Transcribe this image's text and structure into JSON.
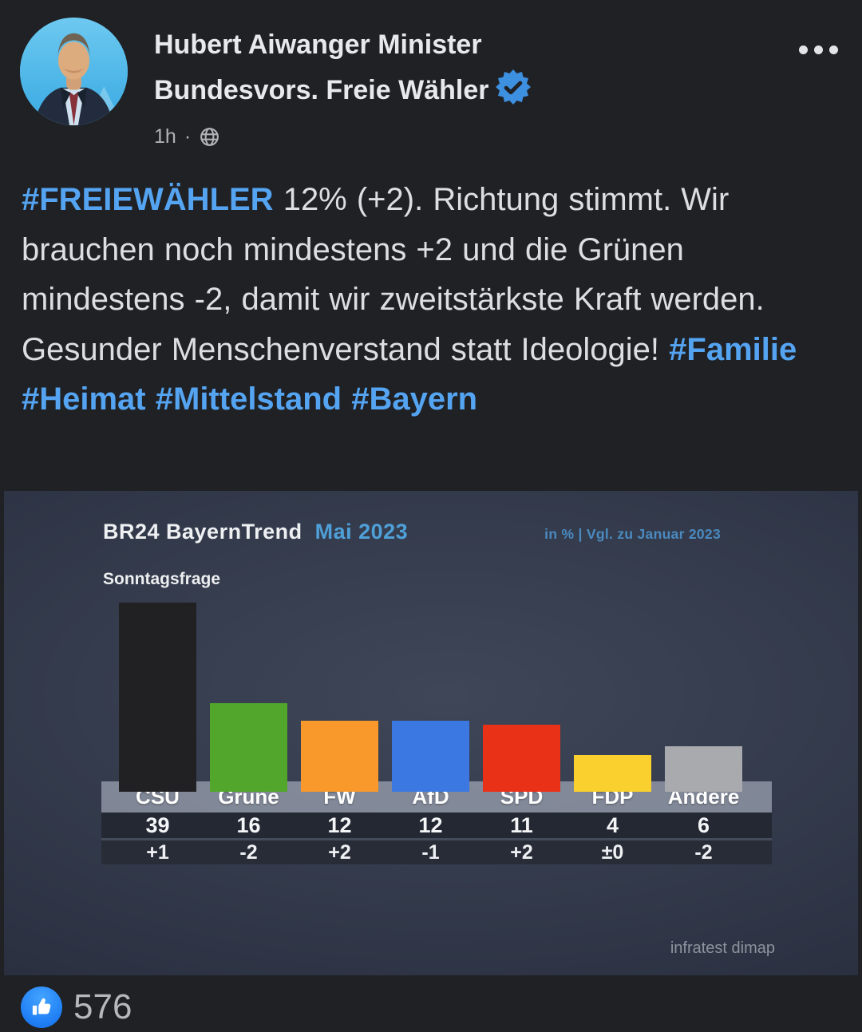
{
  "header": {
    "name": "Hubert Aiwanger Minister Bundesvors. Freie Wähler",
    "timestamp": "1h",
    "separator": "·",
    "icons": {
      "verified_badge": "blue-check-seal",
      "privacy": "globe-public",
      "more_options": "horizontal-ellipsis"
    },
    "colors": {
      "verified_blue": "#3d8fe0",
      "name_text": "#e7e9ec",
      "meta_text": "#afb2b7"
    }
  },
  "post": {
    "segments": [
      {
        "text": "#FREIEWÄHLER",
        "link": true
      },
      {
        "text": " 12% (+2). Richtung stimmt. Wir brauchen noch mindestens +2 und die Grünen mindestens -2, damit wir zweitstärkste Kraft werden. Gesunder Menschenverstand statt Ideologie! ",
        "link": false
      },
      {
        "text": "#Familie",
        "link": true
      },
      {
        "text": " ",
        "link": false
      },
      {
        "text": "#Heimat",
        "link": true
      },
      {
        "text": " ",
        "link": false
      },
      {
        "text": "#Mittelstand",
        "link": true
      },
      {
        "text": " ",
        "link": false
      },
      {
        "text": "#Bayern",
        "link": true
      }
    ],
    "colors": {
      "body_text": "#dcdee1",
      "hashtag_blue": "#55a4f2"
    }
  },
  "chart_data": {
    "type": "bar",
    "title": "BR24 BayernTrend",
    "subtitle": "Mai 2023",
    "note": "in % | Vgl. zu Januar 2023",
    "question": "Sonntagsfrage",
    "source": "infratest dimap",
    "unit": "%",
    "categories": [
      "CSU",
      "Grüne",
      "FW",
      "AfD",
      "SPD",
      "FDP",
      "Andere"
    ],
    "values": [
      39,
      16,
      12,
      12,
      11,
      4,
      6
    ],
    "changes": [
      "+1",
      "-2",
      "+2",
      "-1",
      "+2",
      "±0",
      "-2"
    ],
    "colors": [
      "#212124",
      "#52a62c",
      "#f9992b",
      "#3c78e1",
      "#e93118",
      "#fad02f",
      "#a8aaad"
    ],
    "background": "#313848",
    "grid": false,
    "legend": false
  },
  "reactions": {
    "like_count": "576",
    "icons": {
      "like": "thumbs-up-blue-circle"
    }
  }
}
